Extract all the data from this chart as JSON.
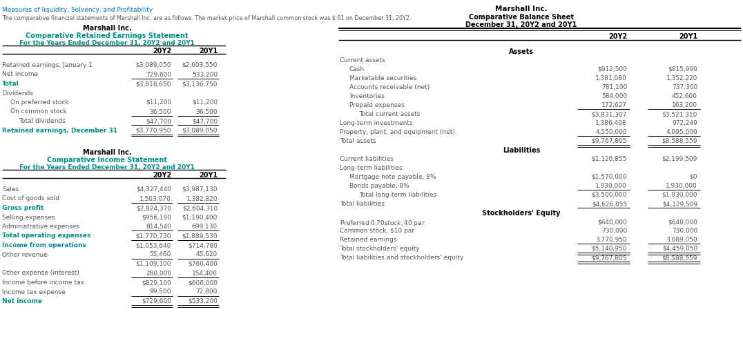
{
  "title_top_left": "Measures of liquidity, Solvency, and Profitability",
  "subtitle_top_left": "The comparative financial statements of Marshall Inc. are as follows. The market price of Marshall common stock was $ 61 on December 31, 20Y2.",
  "color_blue": "#0070C0",
  "color_teal": "#008B8B",
  "color_black": "#000000",
  "color_body": "#555555",
  "color_darkred": "#8B0000",
  "left_top_company": "Marshall Inc.",
  "left_top_stmt": "Comparative Retained Earnings Statement",
  "left_top_period": "For the Years Ended December 31, 20Y2 and 20Y1",
  "re_cols": [
    "20Y2",
    "20Y1"
  ],
  "re_rows": [
    {
      "label": "Retained earnings, January 1",
      "v1": "$3,089,050",
      "v2": "$2,603,550",
      "indent": 0,
      "bold": false,
      "ul": false
    },
    {
      "label": "Net income",
      "v1": "729,600",
      "v2": "533,200",
      "indent": 0,
      "bold": false,
      "ul": true
    },
    {
      "label": "Total",
      "v1": "$3,818,650",
      "v2": "$3,136,750",
      "indent": 0,
      "bold": true,
      "ul": false
    },
    {
      "label": "Dividends:",
      "v1": "",
      "v2": "",
      "indent": 0,
      "bold": false,
      "ul": false
    },
    {
      "label": "On preferred stock",
      "v1": "$11,200",
      "v2": "$11,200",
      "indent": 1,
      "bold": false,
      "ul": false
    },
    {
      "label": "On common stock",
      "v1": "36,500",
      "v2": "36,500",
      "indent": 1,
      "bold": false,
      "ul": true
    },
    {
      "label": "Total dividends",
      "v1": "$47,700",
      "v2": "$47,700",
      "indent": 2,
      "bold": false,
      "ul": true
    },
    {
      "label": "Retained earnings, December 31",
      "v1": "$3,770,950",
      "v2": "$3,089,050",
      "indent": 0,
      "bold": true,
      "ul": true,
      "double_ul": true
    }
  ],
  "left_bot_company": "Marshall Inc.",
  "left_bot_stmt": "Comparative Income Statement",
  "left_bot_period": "For the Years Ended December 31, 20Y2 and 20Y1",
  "is_cols": [
    "20Y2",
    "20Y1"
  ],
  "is_rows": [
    {
      "label": "Sales",
      "v1": "$4,327,440",
      "v2": "$3,987,130",
      "indent": 0,
      "bold": false,
      "ul": false
    },
    {
      "label": "Cost of goods sold",
      "v1": "1,503,070",
      "v2": "1,382,820",
      "indent": 0,
      "bold": false,
      "ul": true
    },
    {
      "label": "Gross profit",
      "v1": "$2,824,370",
      "v2": "$2,604,310",
      "indent": 0,
      "bold": true,
      "ul": false
    },
    {
      "label": "Selling expenses",
      "v1": "$956,190",
      "v2": "$1,190,400",
      "indent": 0,
      "bold": false,
      "ul": false
    },
    {
      "label": "Administrative expenses",
      "v1": "814,540",
      "v2": "699,130",
      "indent": 0,
      "bold": false,
      "ul": true
    },
    {
      "label": "Total operating expenses",
      "v1": "$1,770,730",
      "v2": "$1,889,530",
      "indent": 0,
      "bold": true,
      "ul": true
    },
    {
      "label": "Income from operations",
      "v1": "$1,053,640",
      "v2": "$714,780",
      "indent": 0,
      "bold": true,
      "ul": false
    },
    {
      "label": "Other revenue",
      "v1": "55,460",
      "v2": "45,620",
      "indent": 0,
      "bold": false,
      "ul": true
    },
    {
      "label": "",
      "v1": "$1,109,100",
      "v2": "$760,400",
      "indent": 0,
      "bold": false,
      "ul": false
    },
    {
      "label": "Other expense (interest)",
      "v1": "280,000",
      "v2": "154,400",
      "indent": 0,
      "bold": false,
      "ul": true
    },
    {
      "label": "Income before income tax",
      "v1": "$829,100",
      "v2": "$606,000",
      "indent": 0,
      "bold": false,
      "ul": false
    },
    {
      "label": "Income tax expense",
      "v1": "99,500",
      "v2": "72,800",
      "indent": 0,
      "bold": false,
      "ul": true
    },
    {
      "label": "Net income",
      "v1": "$729,600",
      "v2": "$533,200",
      "indent": 0,
      "bold": true,
      "ul": true,
      "double_ul": true
    }
  ],
  "right_company": "Marshall Inc.",
  "right_stmt": "Comparative Balance Sheet",
  "right_period": "December 31, 20Y2 and 20Y1",
  "bs_cols": [
    "20Y2",
    "20Y1"
  ],
  "bs_rows": [
    {
      "label": "Assets",
      "v1": "",
      "v2": "",
      "section": true,
      "indent": 0,
      "ul": false,
      "double_ul": false
    },
    {
      "label": "Current assets",
      "v1": "",
      "v2": "",
      "section": false,
      "indent": 0,
      "ul": false,
      "double_ul": false
    },
    {
      "label": "Cash",
      "v1": "$912,500",
      "v2": "$815,990",
      "section": false,
      "indent": 1,
      "ul": false,
      "double_ul": false
    },
    {
      "label": "Marketable securities",
      "v1": "1,381,080",
      "v2": "1,352,220",
      "section": false,
      "indent": 1,
      "ul": false,
      "double_ul": false
    },
    {
      "label": "Accounts receivable (net)",
      "v1": "781,100",
      "v2": "737,300",
      "section": false,
      "indent": 1,
      "ul": false,
      "double_ul": false
    },
    {
      "label": "Inventories",
      "v1": "584,000",
      "v2": "452,600",
      "section": false,
      "indent": 1,
      "ul": false,
      "double_ul": false
    },
    {
      "label": "Prepaid expenses",
      "v1": "172,627",
      "v2": "163,200",
      "section": false,
      "indent": 1,
      "ul": true,
      "double_ul": false
    },
    {
      "label": "Total current assets",
      "v1": "$3,831,307",
      "v2": "$3,521,310",
      "section": false,
      "indent": 2,
      "ul": false,
      "double_ul": false
    },
    {
      "label": "Long-term investments",
      "v1": "1,386,498",
      "v2": "972,249",
      "section": false,
      "indent": 0,
      "ul": false,
      "double_ul": false
    },
    {
      "label": "Property, plant, and equipment (net)",
      "v1": "4,550,000",
      "v2": "4,095,000",
      "section": false,
      "indent": 0,
      "ul": true,
      "double_ul": false
    },
    {
      "label": "Total assets",
      "v1": "$9,767,805",
      "v2": "$8,588,559",
      "section": false,
      "indent": 0,
      "ul": true,
      "double_ul": true
    },
    {
      "label": "Liabilities",
      "v1": "",
      "v2": "",
      "section": true,
      "indent": 0,
      "ul": false,
      "double_ul": false
    },
    {
      "label": "Current liabilities",
      "v1": "$1,126,855",
      "v2": "$2,199,509",
      "section": false,
      "indent": 0,
      "ul": false,
      "double_ul": false
    },
    {
      "label": "Long-term liabilities:",
      "v1": "",
      "v2": "",
      "section": false,
      "indent": 0,
      "ul": false,
      "double_ul": false
    },
    {
      "label": "Mortgage note payable, 8%",
      "v1": "$1,570,000",
      "v2": "$0",
      "section": false,
      "indent": 1,
      "ul": false,
      "double_ul": false
    },
    {
      "label": "Bonds payable, 8%",
      "v1": "1,930,000",
      "v2": "1,930,000",
      "section": false,
      "indent": 1,
      "ul": true,
      "double_ul": false
    },
    {
      "label": "Total long-term liabilities",
      "v1": "$3,500,000",
      "v2": "$1,930,000",
      "section": false,
      "indent": 2,
      "ul": false,
      "double_ul": false
    },
    {
      "label": "Total liabilities",
      "v1": "$4,626,855",
      "v2": "$4,129,509",
      "section": false,
      "indent": 0,
      "ul": true,
      "double_ul": false
    },
    {
      "label": "Stockholders' Equity",
      "v1": "",
      "v2": "",
      "section": true,
      "indent": 0,
      "ul": false,
      "double_ul": false
    },
    {
      "label": "Preferred $0.70 stock, $40 par",
      "v1": "$640,000",
      "v2": "$640,000",
      "section": false,
      "indent": 0,
      "ul": false,
      "double_ul": false
    },
    {
      "label": "Common stock, $10 par",
      "v1": "730,000",
      "v2": "730,000",
      "section": false,
      "indent": 0,
      "ul": false,
      "double_ul": false
    },
    {
      "label": "Retained earnings",
      "v1": "3,770,950",
      "v2": "3,089,050",
      "section": false,
      "indent": 0,
      "ul": true,
      "double_ul": false
    },
    {
      "label": "Total stockholders' equity",
      "v1": "$5,140,950",
      "v2": "$4,459,050",
      "section": false,
      "indent": 0,
      "ul": true,
      "double_ul": true
    },
    {
      "label": "Total liabilities and stockholders' equity",
      "v1": "$9,767,805",
      "v2": "$8,588,559",
      "section": false,
      "indent": 0,
      "ul": true,
      "double_ul": true
    }
  ]
}
